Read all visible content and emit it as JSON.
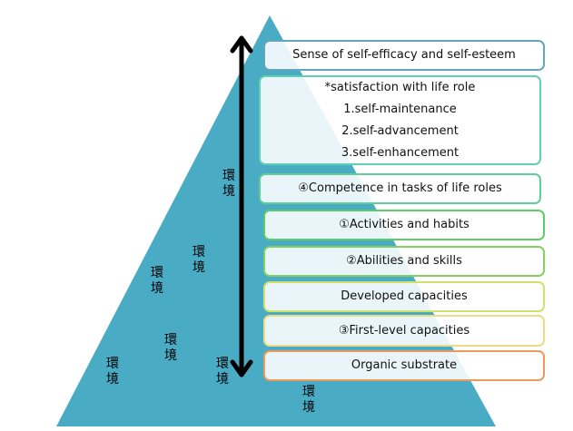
{
  "colors": {
    "triangle": "#4aabc4",
    "arrow": "#000000"
  },
  "environment_label": "環境",
  "environment_label_top": "環",
  "environment_label_bottom": "境",
  "levels": [
    {
      "lines": [
        "Sense of self-efficacy and self-esteem"
      ],
      "border": "#63a6c0"
    },
    {
      "lines": [
        "*satisfaction with life role",
        "1.self-maintenance",
        "2.self-advancement",
        "3.self-enhancement"
      ],
      "border": "#5fd0b2"
    },
    {
      "lines": [
        "④Competence  in tasks of life roles"
      ],
      "border": "#5fd093"
    },
    {
      "lines": [
        "①Activities and habits"
      ],
      "border": "#5ccc68"
    },
    {
      "lines": [
        "②Abilities and skills"
      ],
      "border": "#82d062"
    },
    {
      "lines": [
        "Developed capacities"
      ],
      "border": "#cfe270"
    },
    {
      "lines": [
        "③First-level capacities"
      ],
      "border": "#ebdc86"
    },
    {
      "lines": [
        "Organic substrate"
      ],
      "border": "#eb9a5e"
    }
  ],
  "arrow": {
    "direction": "bidirectional-vertical"
  }
}
